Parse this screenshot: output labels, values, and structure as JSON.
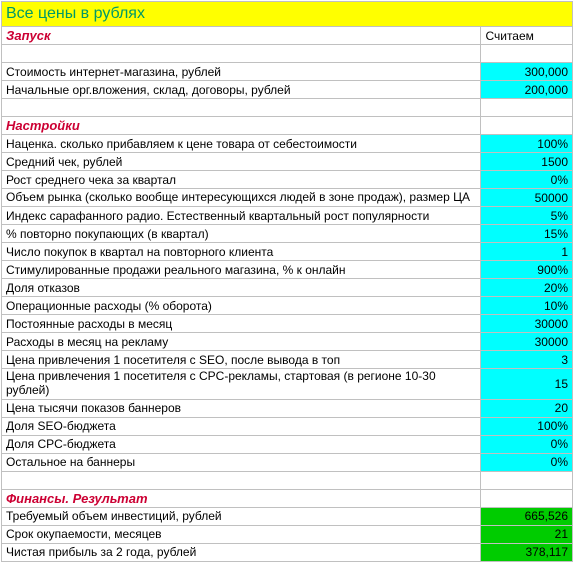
{
  "title": "Все цены в рублях",
  "header_value_label": "Считаем",
  "sections": {
    "launch": {
      "title": "Запуск",
      "rows": [
        {
          "label": "Стоимость интернет-магазина, рублей",
          "value": "300,000"
        },
        {
          "label": "Начальные орг.вложения, склад, договоры, рублей",
          "value": "200,000"
        }
      ]
    },
    "settings": {
      "title": "Настройки",
      "rows": [
        {
          "label": "Наценка. сколько прибавляем к цене товара от себестоимости",
          "value": "100%"
        },
        {
          "label": "Средний чек, рублей",
          "value": "1500"
        },
        {
          "label": "Рост среднего чека за квартал",
          "value": "0%"
        },
        {
          "label": "Объем рынка (сколько вообще интересующихся людей в зоне продаж), размер ЦА",
          "value": "50000"
        },
        {
          "label": "Индекс сарафанного радио. Естественный квартальный рост популярности",
          "value": "5%"
        },
        {
          "label": "% повторно покупающих (в квартал)",
          "value": "15%"
        },
        {
          "label": "Число покупок в квартал на повторного клиента",
          "value": "1"
        },
        {
          "label": "Стимулированные продажи реального магазина, % к онлайн",
          "value": "900%"
        },
        {
          "label": "Доля отказов",
          "value": "20%"
        },
        {
          "label": "Операционные расходы (% оборота)",
          "value": "10%"
        },
        {
          "label": "Постоянные расходы в месяц",
          "value": "30000"
        },
        {
          "label": "Расходы в месяц на рекламу",
          "value": "30000"
        },
        {
          "label": "Цена привлечения 1 посетителя с SEO, после вывода в топ",
          "value": "3"
        },
        {
          "label": "Цена привлечения 1 посетителя с CPC-рекламы, стартовая (в регионе 10-30 рублей)",
          "value": "15"
        },
        {
          "label": "Цена тысячи показов баннеров",
          "value": "20"
        },
        {
          "label": "Доля SEO-бюджета",
          "value": "100%"
        },
        {
          "label": "Доля CPC-бюджета",
          "value": "0%"
        },
        {
          "label": "Остальное на баннеры",
          "value": "0%"
        }
      ]
    },
    "finance": {
      "title": "Финансы. Результат",
      "rows": [
        {
          "label": "Требуемый объем инвестиций, рублей",
          "value": "665,526"
        },
        {
          "label": "Срок окупаемости, месяцев",
          "value": "21"
        },
        {
          "label": "Чистая прибыль за 2 года, рублей",
          "value": "378,117"
        }
      ]
    }
  },
  "colors": {
    "title_bg": "#ffff00",
    "title_fg": "#009966",
    "section_fg": "#cc0033",
    "cyan": "#00ffff",
    "green": "#00cc00",
    "grid": "#c0c0c0"
  }
}
